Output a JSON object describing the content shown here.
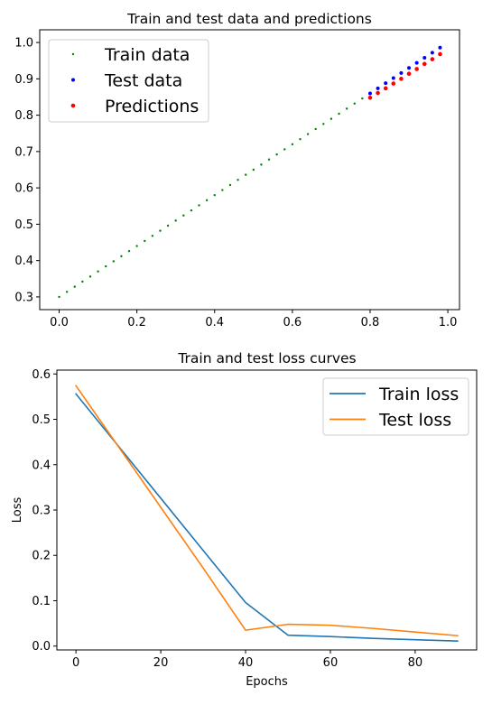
{
  "chart_data": [
    {
      "type": "scatter",
      "title": "Train and test data and predictions",
      "xlabel": "",
      "ylabel": "",
      "xlim": [
        -0.05,
        1.03
      ],
      "ylim": [
        0.265,
        1.035
      ],
      "x_ticks": [
        0.0,
        0.2,
        0.4,
        0.6,
        0.8,
        1.0
      ],
      "x_tick_labels": [
        "0.0",
        "0.2",
        "0.4",
        "0.6",
        "0.8",
        "1.0"
      ],
      "y_ticks": [
        0.3,
        0.4,
        0.5,
        0.6,
        0.7,
        0.8,
        0.9,
        1.0
      ],
      "y_tick_labels": [
        "0.3",
        "0.4",
        "0.5",
        "0.6",
        "0.7",
        "0.8",
        "0.9",
        "1.0"
      ],
      "grid": false,
      "legend_position": "top-left",
      "series": [
        {
          "name": "Train data",
          "color": "#008000",
          "marker_size": 1.2,
          "x": [
            0.0,
            0.02,
            0.04,
            0.06,
            0.08,
            0.1,
            0.12,
            0.14,
            0.16,
            0.18,
            0.2,
            0.22,
            0.24,
            0.26,
            0.28,
            0.3,
            0.32,
            0.34,
            0.36,
            0.38,
            0.4,
            0.42,
            0.44,
            0.46,
            0.48,
            0.5,
            0.52,
            0.54,
            0.56,
            0.58,
            0.6,
            0.62,
            0.64,
            0.66,
            0.68,
            0.7,
            0.72,
            0.74,
            0.76,
            0.78
          ],
          "y": [
            0.3,
            0.314,
            0.328,
            0.342,
            0.356,
            0.37,
            0.384,
            0.398,
            0.412,
            0.426,
            0.44,
            0.454,
            0.468,
            0.482,
            0.496,
            0.51,
            0.524,
            0.538,
            0.552,
            0.566,
            0.58,
            0.594,
            0.608,
            0.622,
            0.636,
            0.65,
            0.664,
            0.678,
            0.692,
            0.706,
            0.72,
            0.734,
            0.748,
            0.762,
            0.776,
            0.79,
            0.804,
            0.818,
            0.832,
            0.846
          ]
        },
        {
          "name": "Test data",
          "color": "#0000ff",
          "marker_size": 2.0,
          "x": [
            0.8,
            0.82,
            0.84,
            0.86,
            0.88,
            0.9,
            0.92,
            0.94,
            0.96,
            0.98
          ],
          "y": [
            0.86,
            0.874,
            0.888,
            0.902,
            0.916,
            0.93,
            0.944,
            0.958,
            0.972,
            0.986
          ]
        },
        {
          "name": "Predictions",
          "color": "#ff0000",
          "marker_size": 2.3,
          "x": [
            0.8,
            0.82,
            0.84,
            0.86,
            0.88,
            0.9,
            0.92,
            0.94,
            0.96,
            0.98
          ],
          "y": [
            0.848,
            0.861,
            0.874,
            0.887,
            0.9,
            0.914,
            0.927,
            0.941,
            0.954,
            0.968
          ]
        }
      ]
    },
    {
      "type": "line",
      "title": "Train and test loss curves",
      "xlabel": "Epochs",
      "ylabel": "Loss",
      "xlim": [
        -4.5,
        94.5
      ],
      "ylim": [
        -0.0085,
        0.6085
      ],
      "x_ticks": [
        0,
        20,
        40,
        60,
        80
      ],
      "x_tick_labels": [
        "0",
        "20",
        "40",
        "60",
        "80"
      ],
      "y_ticks": [
        0.0,
        0.1,
        0.2,
        0.3,
        0.4,
        0.5,
        0.6
      ],
      "y_tick_labels": [
        "0.0",
        "0.1",
        "0.2",
        "0.3",
        "0.4",
        "0.5",
        "0.6"
      ],
      "grid": false,
      "legend_position": "top-right",
      "series": [
        {
          "name": "Train loss",
          "color": "#1f77b4",
          "x": [
            0,
            10,
            20,
            30,
            40,
            50,
            60,
            70,
            80,
            90
          ],
          "y": [
            0.556,
            0.441,
            0.326,
            0.211,
            0.096,
            0.024,
            0.021,
            0.017,
            0.014,
            0.011
          ]
        },
        {
          "name": "Test loss",
          "color": "#ff7f0e",
          "x": [
            0,
            10,
            20,
            30,
            40,
            50,
            60,
            70,
            80,
            90
          ],
          "y": [
            0.574,
            0.44,
            0.306,
            0.172,
            0.035,
            0.048,
            0.046,
            0.039,
            0.031,
            0.023
          ]
        }
      ]
    }
  ]
}
